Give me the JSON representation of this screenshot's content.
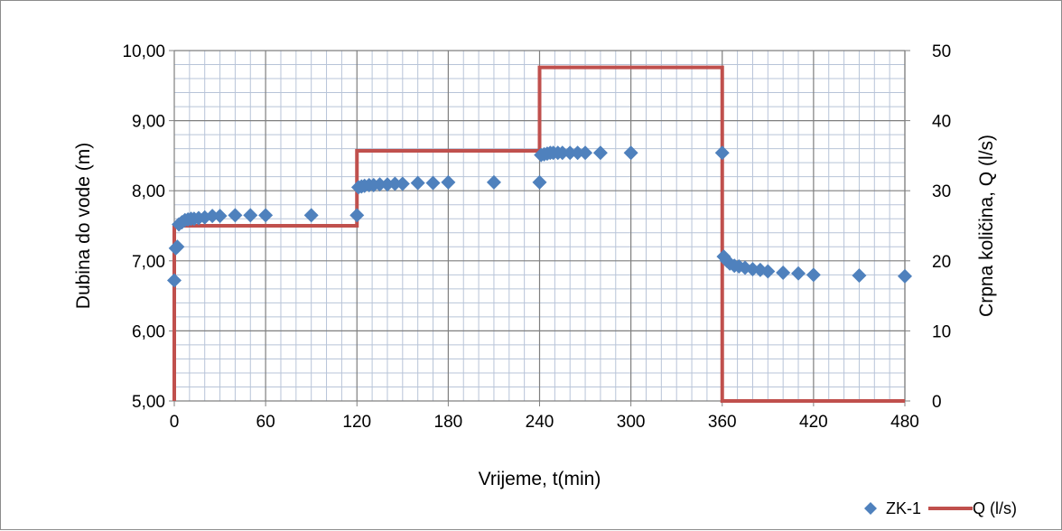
{
  "chart_data": {
    "type": "scatter",
    "title": "",
    "xlabel": "Vrijeme, t(min)",
    "ylabel": "Dubina do vode (m)",
    "y2label": "Crpna količina, Q (l/s)",
    "xlim": [
      0,
      480
    ],
    "ylim": [
      5,
      10
    ],
    "y2lim": [
      0,
      50
    ],
    "x_ticks": [
      "0",
      "60",
      "120",
      "180",
      "240",
      "300",
      "360",
      "420",
      "480"
    ],
    "y_ticks": [
      "5,00",
      "6,00",
      "7,00",
      "8,00",
      "9,00",
      "10,00"
    ],
    "y2_ticks": [
      "0",
      "10",
      "20",
      "30",
      "40",
      "50"
    ],
    "grid": true,
    "legend_position": "bottom-right",
    "colors": {
      "ZK-1": "#4f81bd",
      "Q": "#c0504d",
      "grid_major": "#7f7f7f",
      "grid_minor": "#b8c4d8"
    },
    "series": [
      {
        "name": "ZK-1",
        "axis": "left",
        "marker": "diamond",
        "points": [
          [
            0,
            6.72
          ],
          [
            1,
            7.18
          ],
          [
            2,
            7.2
          ],
          [
            3,
            7.52
          ],
          [
            5,
            7.55
          ],
          [
            7,
            7.58
          ],
          [
            9,
            7.59
          ],
          [
            11,
            7.6
          ],
          [
            13,
            7.6
          ],
          [
            16,
            7.61
          ],
          [
            20,
            7.62
          ],
          [
            25,
            7.64
          ],
          [
            30,
            7.64
          ],
          [
            40,
            7.65
          ],
          [
            50,
            7.65
          ],
          [
            60,
            7.65
          ],
          [
            90,
            7.65
          ],
          [
            120,
            7.65
          ],
          [
            121,
            8.05
          ],
          [
            123,
            8.06
          ],
          [
            125,
            8.07
          ],
          [
            128,
            8.08
          ],
          [
            131,
            8.08
          ],
          [
            135,
            8.09
          ],
          [
            140,
            8.09
          ],
          [
            145,
            8.1
          ],
          [
            150,
            8.1
          ],
          [
            160,
            8.11
          ],
          [
            170,
            8.11
          ],
          [
            180,
            8.12
          ],
          [
            210,
            8.12
          ],
          [
            240,
            8.12
          ],
          [
            241,
            8.51
          ],
          [
            243,
            8.52
          ],
          [
            245,
            8.53
          ],
          [
            247,
            8.54
          ],
          [
            249,
            8.54
          ],
          [
            252,
            8.54
          ],
          [
            255,
            8.54
          ],
          [
            260,
            8.54
          ],
          [
            265,
            8.54
          ],
          [
            270,
            8.54
          ],
          [
            280,
            8.54
          ],
          [
            300,
            8.54
          ],
          [
            360,
            8.54
          ],
          [
            361,
            7.06
          ],
          [
            363,
            7.0
          ],
          [
            365,
            6.96
          ],
          [
            368,
            6.93
          ],
          [
            371,
            6.92
          ],
          [
            375,
            6.9
          ],
          [
            380,
            6.88
          ],
          [
            385,
            6.87
          ],
          [
            390,
            6.85
          ],
          [
            400,
            6.83
          ],
          [
            410,
            6.82
          ],
          [
            420,
            6.8
          ],
          [
            450,
            6.79
          ],
          [
            480,
            6.78
          ]
        ]
      },
      {
        "name": "Q (l/s)",
        "axis": "right",
        "type": "line",
        "points": [
          [
            0,
            0
          ],
          [
            0,
            25
          ],
          [
            120,
            25
          ],
          [
            120,
            35.7
          ],
          [
            240,
            35.7
          ],
          [
            240,
            47.6
          ],
          [
            360,
            47.6
          ],
          [
            360,
            0
          ],
          [
            480,
            0
          ]
        ]
      }
    ]
  }
}
